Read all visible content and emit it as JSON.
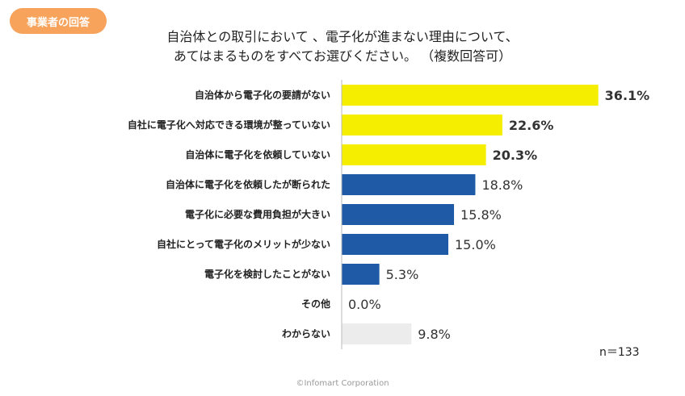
{
  "badge": {
    "label": "事業者の回答"
  },
  "title": {
    "line1": "自治体との取引において 、電子化が進まない理由について、",
    "line2": "あてはまるものをすべてお選びください。 （複数回答可）"
  },
  "sample_note": "n＝133",
  "footer": "©Infomart Corporation",
  "colors": {
    "highlight": "#f5ee00",
    "standard": "#1f5aa6",
    "muted": "#ececec",
    "badge": "#f7a35c"
  },
  "chart_data": {
    "type": "bar",
    "orientation": "horizontal",
    "title": "",
    "xlabel": "",
    "ylabel": "",
    "xlim": [
      0,
      40
    ],
    "grid": false,
    "categories": [
      "自治体から電子化の要請がない",
      "自社に電子化へ対応できる環境が整っていない",
      "自治体に電子化を依頼していない",
      "自治体に電子化を依頼したが断られた",
      "電子化に必要な費用負担が大きい",
      "自社にとって電子化のメリットが少ない",
      "電子化を検討したことがない",
      "その他",
      "わからない"
    ],
    "values": [
      36.1,
      22.6,
      20.3,
      18.8,
      15.8,
      15.0,
      5.3,
      0.0,
      9.8
    ],
    "value_labels": [
      "36.1%",
      "22.6%",
      "20.3%",
      "18.8%",
      "15.8%",
      "15.0%",
      "5.3%",
      "0.0%",
      "9.8%"
    ],
    "bar_colors": [
      "highlight",
      "highlight",
      "highlight",
      "standard",
      "standard",
      "standard",
      "standard",
      "muted",
      "muted"
    ],
    "bold_labels": [
      true,
      true,
      true,
      false,
      false,
      false,
      false,
      false,
      false
    ]
  }
}
